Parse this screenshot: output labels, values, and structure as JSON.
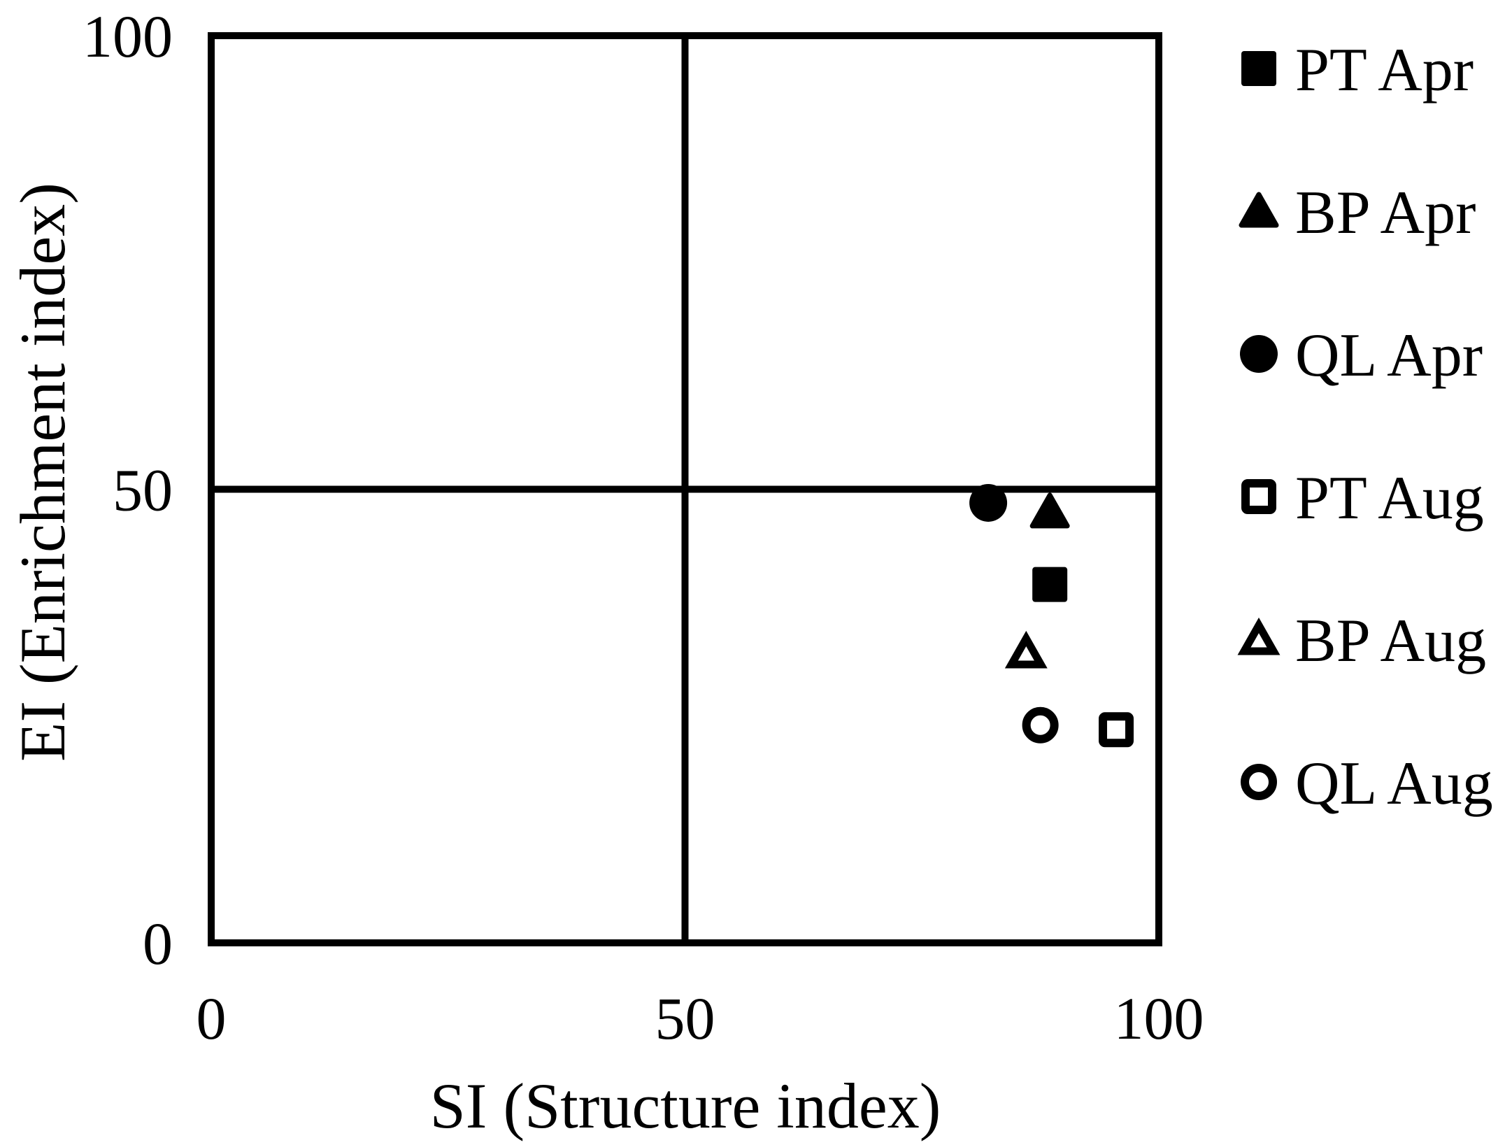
{
  "chart_data": {
    "type": "scatter",
    "title": "",
    "xlabel": "SI (Structure index)",
    "ylabel": "EI (Enrichment index)",
    "xlim": [
      0,
      100
    ],
    "ylim": [
      0,
      100
    ],
    "x_ticks": [
      0,
      50,
      100
    ],
    "y_ticks": [
      0,
      50,
      100
    ],
    "grid": false,
    "reference_lines": {
      "x": 50,
      "y": 50
    },
    "legend_position": "right",
    "colors": {
      "marker": "#000000",
      "axis": "#000000",
      "background": "#ffffff"
    },
    "series": [
      {
        "name": "PT Apr",
        "marker": "square",
        "fill": "filled",
        "points": [
          {
            "x": 88.5,
            "y": 39.5
          }
        ]
      },
      {
        "name": "BP Apr",
        "marker": "triangle",
        "fill": "filled",
        "points": [
          {
            "x": 88.5,
            "y": 47.5
          }
        ]
      },
      {
        "name": "QL Apr",
        "marker": "circle",
        "fill": "filled",
        "points": [
          {
            "x": 82,
            "y": 48.5
          }
        ]
      },
      {
        "name": "PT Aug",
        "marker": "square",
        "fill": "open",
        "points": [
          {
            "x": 95.5,
            "y": 23.5
          }
        ]
      },
      {
        "name": "BP Aug",
        "marker": "triangle",
        "fill": "open",
        "points": [
          {
            "x": 86,
            "y": 32
          }
        ]
      },
      {
        "name": "QL Aug",
        "marker": "circle",
        "fill": "open",
        "points": [
          {
            "x": 87.5,
            "y": 24
          }
        ]
      }
    ]
  }
}
